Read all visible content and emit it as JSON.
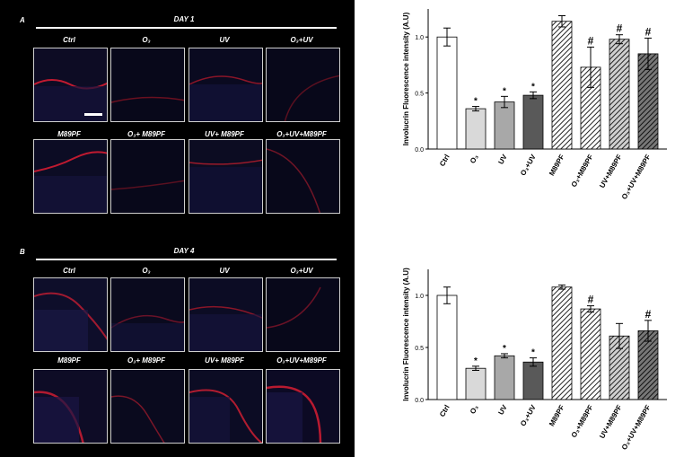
{
  "panel_a": {
    "letter": "A",
    "day": "DAY 1",
    "row1_labels": [
      "Ctrl",
      "O₃",
      "UV",
      "O₃+UV"
    ],
    "row2_labels": [
      "M89PF",
      "O₃+ M89PF",
      "UV+ M89PF",
      "O₃+UV+M89PF"
    ]
  },
  "panel_b": {
    "letter": "B",
    "day": "DAY 4",
    "row1_labels": [
      "Ctrl",
      "O₃",
      "UV",
      "O₃+UV"
    ],
    "row2_labels": [
      "M89PF",
      "O₃+ M89PF",
      "UV+ M89PF",
      "O₃+UV+M89PF"
    ]
  },
  "chart_data": [
    {
      "type": "bar",
      "ylabel": "Involucrin Fluorescence intensity (A.U)",
      "ylim": [
        0,
        1.25
      ],
      "yticks": [
        "0.0",
        "0.5",
        "1.0"
      ],
      "categories": [
        "Ctrl",
        "O₃",
        "UV",
        "O₃+UV",
        "M89PF",
        "O₃+M89PF",
        "UV+M89PF",
        "O₃+UV+M89PF"
      ],
      "values": [
        1.0,
        0.36,
        0.42,
        0.48,
        1.14,
        0.73,
        0.98,
        0.85
      ],
      "errors": [
        0.08,
        0.02,
        0.05,
        0.03,
        0.05,
        0.18,
        0.04,
        0.14
      ],
      "annotations": [
        "",
        "*",
        "*",
        "*",
        "",
        "#",
        "#",
        "#"
      ],
      "fills": [
        "white",
        "lightgray",
        "gray",
        "darkgray",
        "hatch",
        "hatch",
        "hatch-gray",
        "hatch-dark"
      ]
    },
    {
      "type": "bar",
      "ylabel": "Involucrin Fluorescence intensity (A.U)",
      "ylim": [
        0,
        1.25
      ],
      "yticks": [
        "0.0",
        "0.5",
        "1.0"
      ],
      "categories": [
        "Ctrl",
        "O₃",
        "UV",
        "O₃+UV",
        "M89PF",
        "O₃+M89PF",
        "UV+M89PF",
        "O₃+UV+M89PF"
      ],
      "values": [
        1.0,
        0.3,
        0.42,
        0.36,
        1.08,
        0.87,
        0.61,
        0.66
      ],
      "errors": [
        0.08,
        0.02,
        0.02,
        0.04,
        0.02,
        0.03,
        0.12,
        0.1
      ],
      "annotations": [
        "",
        "*",
        "*",
        "*",
        "",
        "#",
        "",
        "#"
      ],
      "fills": [
        "white",
        "lightgray",
        "gray",
        "darkgray",
        "hatch",
        "hatch",
        "hatch-gray",
        "hatch-dark"
      ]
    }
  ]
}
